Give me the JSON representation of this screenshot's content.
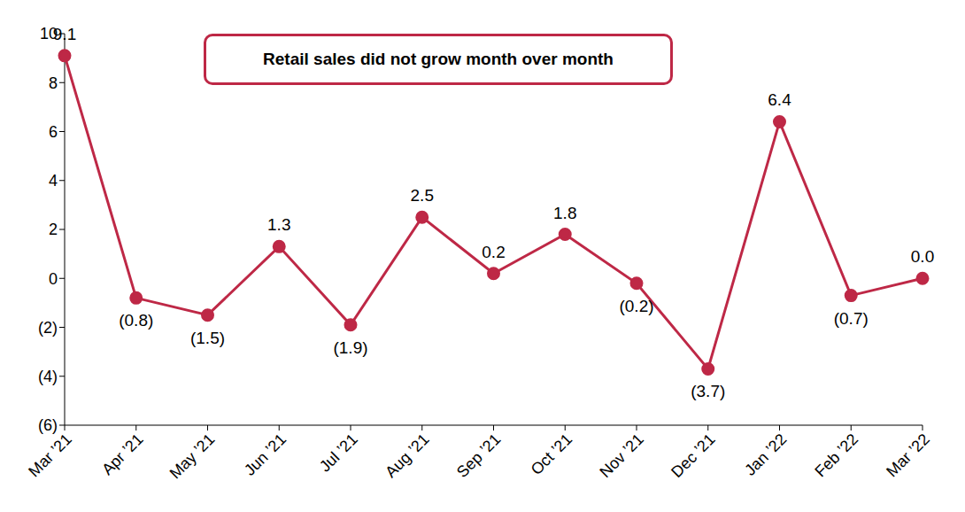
{
  "chart_data": {
    "type": "line",
    "annotations": [
      "Retail sales did not grow month over month"
    ],
    "categories": [
      "Mar ’21",
      "Apr ’21",
      "May ’21",
      "Jun ’21",
      "Jul ’21",
      "Aug ’21",
      "Sep ’21",
      "Oct ’21",
      "Nov ’21",
      "Dec ’21",
      "Jan ’22",
      "Feb ’22",
      "Mar ’22"
    ],
    "values": [
      9.1,
      -0.8,
      -1.5,
      1.3,
      -1.9,
      2.5,
      0.2,
      1.8,
      -0.2,
      -3.7,
      6.4,
      -0.7,
      0.0
    ],
    "value_labels": [
      "9.1",
      "(0.8)",
      "(1.5)",
      "1.3",
      "(1.9)",
      "2.5",
      "0.2",
      "1.8",
      "(0.2)",
      "(3.7)",
      "6.4",
      "(0.7)",
      "0.0"
    ],
    "color": "#be2846",
    "marker": "circle",
    "ylim": [
      -6,
      10
    ],
    "yticks": [
      {
        "value": -6,
        "label": "(6)"
      },
      {
        "value": -4,
        "label": "(4)"
      },
      {
        "value": -2,
        "label": "(2)"
      },
      0,
      2,
      4,
      6,
      8,
      10
    ],
    "grid": false,
    "data_labels": true
  }
}
